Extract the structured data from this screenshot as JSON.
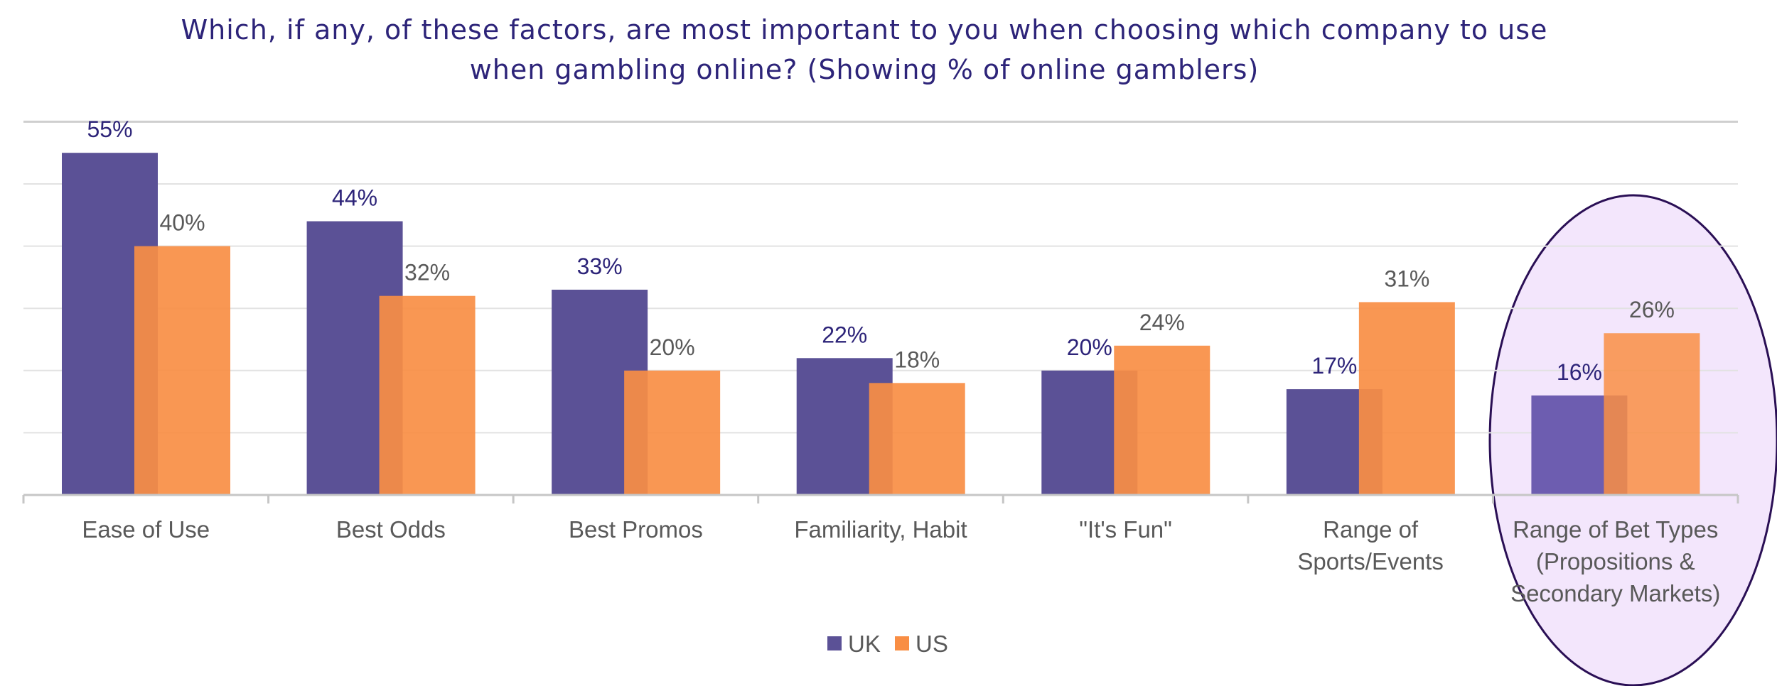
{
  "chart_data": {
    "type": "bar",
    "title_lines": [
      "Which, if any, of these factors, are most important to you when choosing which company to use",
      "when gambling online? (Showing % of online gamblers)"
    ],
    "categories": [
      [
        "Ease of Use"
      ],
      [
        "Best Odds"
      ],
      [
        "Best Promos"
      ],
      [
        "Familiarity, Habit"
      ],
      [
        "\"It's Fun\""
      ],
      [
        "Range of",
        "Sports/Events"
      ],
      [
        "Range of Bet Types",
        "(Propositions &",
        "Secondary Markets)"
      ]
    ],
    "series": [
      {
        "name": "UK",
        "values": [
          55,
          44,
          33,
          22,
          20,
          17,
          16
        ],
        "labels": [
          "55%",
          "44%",
          "33%",
          "22%",
          "20%",
          "17%",
          "16%"
        ],
        "color": "#5b5196"
      },
      {
        "name": "US",
        "values": [
          40,
          32,
          20,
          18,
          24,
          31,
          26
        ],
        "labels": [
          "40%",
          "32%",
          "20%",
          "18%",
          "24%",
          "31%",
          "26%"
        ],
        "color": "#f98e44"
      }
    ],
    "ylim": [
      0,
      60
    ],
    "grid": true,
    "legend_position": "bottom-center",
    "highlighted_category_index": 6,
    "highlight_fill": "#f3e6fc",
    "highlight_stroke": "#2a0f55"
  }
}
